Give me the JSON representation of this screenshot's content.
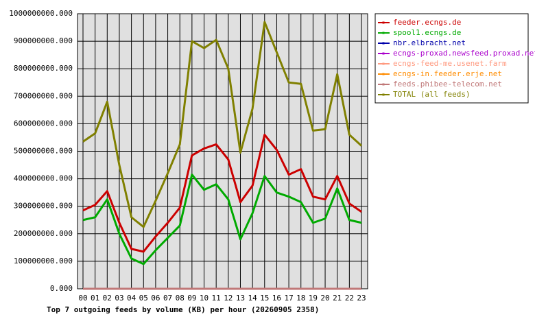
{
  "chart_data": {
    "type": "line",
    "title": "Top 7 outgoing feeds by volume (KB) per hour (20260905 2358)",
    "categories": [
      "00",
      "01",
      "02",
      "03",
      "04",
      "05",
      "06",
      "07",
      "08",
      "09",
      "10",
      "11",
      "12",
      "13",
      "14",
      "15",
      "16",
      "17",
      "18",
      "19",
      "20",
      "21",
      "22",
      "23"
    ],
    "series": [
      {
        "name": "feeder.ecngs.de",
        "color": "#cc0000",
        "values": [
          285000000,
          305000000,
          355000000,
          240000000,
          145000000,
          135000000,
          190000000,
          240000000,
          295000000,
          485000000,
          510000000,
          525000000,
          470000000,
          315000000,
          375000000,
          560000000,
          505000000,
          415000000,
          435000000,
          335000000,
          325000000,
          410000000,
          310000000,
          280000000
        ]
      },
      {
        "name": "spool1.ecngs.de",
        "color": "#00aa00",
        "values": [
          250000000,
          260000000,
          325000000,
          200000000,
          110000000,
          90000000,
          140000000,
          185000000,
          230000000,
          415000000,
          360000000,
          380000000,
          325000000,
          180000000,
          275000000,
          410000000,
          350000000,
          335000000,
          315000000,
          240000000,
          255000000,
          365000000,
          250000000,
          240000000
        ]
      },
      {
        "name": "nbr.elbracht.net",
        "color": "#0000aa",
        "values": [
          0,
          0,
          0,
          0,
          0,
          0,
          0,
          0,
          0,
          0,
          0,
          0,
          0,
          0,
          0,
          0,
          0,
          0,
          0,
          0,
          0,
          0,
          0,
          0
        ]
      },
      {
        "name": "ecngs-proxad.newsfeed.proxad.net",
        "color": "#aa00cc",
        "values": [
          0,
          0,
          0,
          0,
          0,
          0,
          0,
          0,
          0,
          0,
          0,
          0,
          0,
          0,
          0,
          0,
          0,
          0,
          0,
          0,
          0,
          0,
          0,
          0
        ]
      },
      {
        "name": "ecngs-feed-me.usenet.farm",
        "color": "#ff9a80",
        "values": [
          0,
          0,
          0,
          0,
          0,
          0,
          0,
          0,
          0,
          0,
          0,
          0,
          0,
          0,
          0,
          0,
          0,
          0,
          0,
          0,
          0,
          0,
          0,
          0
        ]
      },
      {
        "name": "ecngs-in.feeder.erje.net",
        "color": "#ff8c00",
        "values": [
          0,
          0,
          0,
          0,
          0,
          0,
          0,
          0,
          0,
          0,
          0,
          0,
          0,
          0,
          0,
          0,
          0,
          0,
          0,
          0,
          0,
          0,
          0,
          0
        ]
      },
      {
        "name": "feeds.phibee-telecom.net",
        "color": "#c07878",
        "values": [
          0,
          0,
          0,
          0,
          0,
          0,
          0,
          0,
          0,
          0,
          0,
          0,
          0,
          0,
          0,
          0,
          0,
          0,
          0,
          0,
          0,
          0,
          0,
          0
        ]
      },
      {
        "name": "TOTAL (all feeds)",
        "color": "#808000",
        "values": [
          535000000,
          565000000,
          680000000,
          450000000,
          260000000,
          225000000,
          320000000,
          420000000,
          525000000,
          900000000,
          875000000,
          905000000,
          800000000,
          495000000,
          655000000,
          970000000,
          860000000,
          750000000,
          745000000,
          575000000,
          580000000,
          780000000,
          560000000,
          520000000
        ]
      }
    ],
    "ylim": [
      0,
      1000000000
    ],
    "yticks": [
      {
        "value": 0,
        "label": "0.000"
      },
      {
        "value": 100000000,
        "label": "100000000.000"
      },
      {
        "value": 200000000,
        "label": "200000000.000"
      },
      {
        "value": 300000000,
        "label": "300000000.000"
      },
      {
        "value": 400000000,
        "label": "400000000.000"
      },
      {
        "value": 500000000,
        "label": "500000000.000"
      },
      {
        "value": 600000000,
        "label": "600000000.000"
      },
      {
        "value": 700000000,
        "label": "700000000.000"
      },
      {
        "value": 800000000,
        "label": "800000000.000"
      },
      {
        "value": 900000000,
        "label": "900000000.000"
      },
      {
        "value": 1000000000,
        "label": "1000000000.000"
      }
    ],
    "grid": true,
    "legend": "right"
  }
}
